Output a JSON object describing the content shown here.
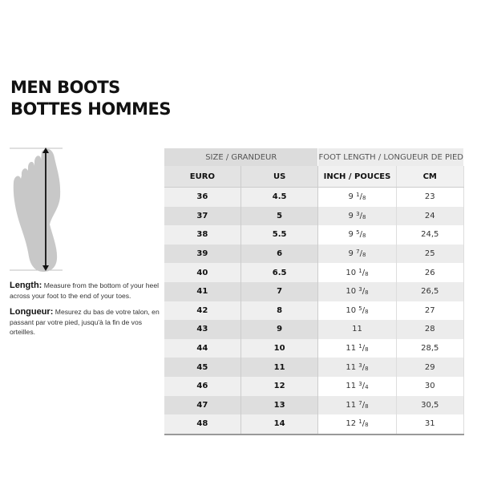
{
  "title": {
    "line1": "MEN BOOTS",
    "line2": "BOTTES HOMMES"
  },
  "instructions": {
    "en_label": "Length:",
    "en_text": "Measure from the bottom of your heel across your foot to the end of your toes.",
    "fr_label": "Longueur:",
    "fr_text": "Mesurez du bas de votre talon, en passant par votre pied, jusqu'à la fin de vos orteilles."
  },
  "table": {
    "group_headers": [
      "SIZE / GRANDEUR",
      "FOOT LENGTH / LONGUEUR DE PIED"
    ],
    "columns": [
      "EURO",
      "US",
      "INCH / POUCES",
      "CM"
    ],
    "rows": [
      {
        "euro": "36",
        "us": "4.5",
        "inch": {
          "whole": "9",
          "num": "1",
          "den": "8"
        },
        "cm": "23"
      },
      {
        "euro": "37",
        "us": "5",
        "inch": {
          "whole": "9",
          "num": "3",
          "den": "8"
        },
        "cm": "24"
      },
      {
        "euro": "38",
        "us": "5.5",
        "inch": {
          "whole": "9",
          "num": "5",
          "den": "8"
        },
        "cm": "24,5"
      },
      {
        "euro": "39",
        "us": "6",
        "inch": {
          "whole": "9",
          "num": "7",
          "den": "8"
        },
        "cm": "25"
      },
      {
        "euro": "40",
        "us": "6.5",
        "inch": {
          "whole": "10",
          "num": "1",
          "den": "8"
        },
        "cm": "26"
      },
      {
        "euro": "41",
        "us": "7",
        "inch": {
          "whole": "10",
          "num": "3",
          "den": "8"
        },
        "cm": "26,5"
      },
      {
        "euro": "42",
        "us": "8",
        "inch": {
          "whole": "10",
          "num": "5",
          "den": "8"
        },
        "cm": "27"
      },
      {
        "euro": "43",
        "us": "9",
        "inch": {
          "whole": "11",
          "num": "",
          "den": ""
        },
        "cm": "28"
      },
      {
        "euro": "44",
        "us": "10",
        "inch": {
          "whole": "11",
          "num": "1",
          "den": "8"
        },
        "cm": "28,5"
      },
      {
        "euro": "45",
        "us": "11",
        "inch": {
          "whole": "11",
          "num": "3",
          "den": "8"
        },
        "cm": "29"
      },
      {
        "euro": "46",
        "us": "12",
        "inch": {
          "whole": "11",
          "num": "3",
          "den": "4"
        },
        "cm": "30"
      },
      {
        "euro": "47",
        "us": "13",
        "inch": {
          "whole": "11",
          "num": "7",
          "den": "8"
        },
        "cm": "30,5"
      },
      {
        "euro": "48",
        "us": "14",
        "inch": {
          "whole": "12",
          "num": "1",
          "den": "8"
        },
        "cm": "31"
      }
    ]
  },
  "illustration": {
    "icon": "foot-measurement-icon",
    "foot_color": "#c8c8c8"
  }
}
